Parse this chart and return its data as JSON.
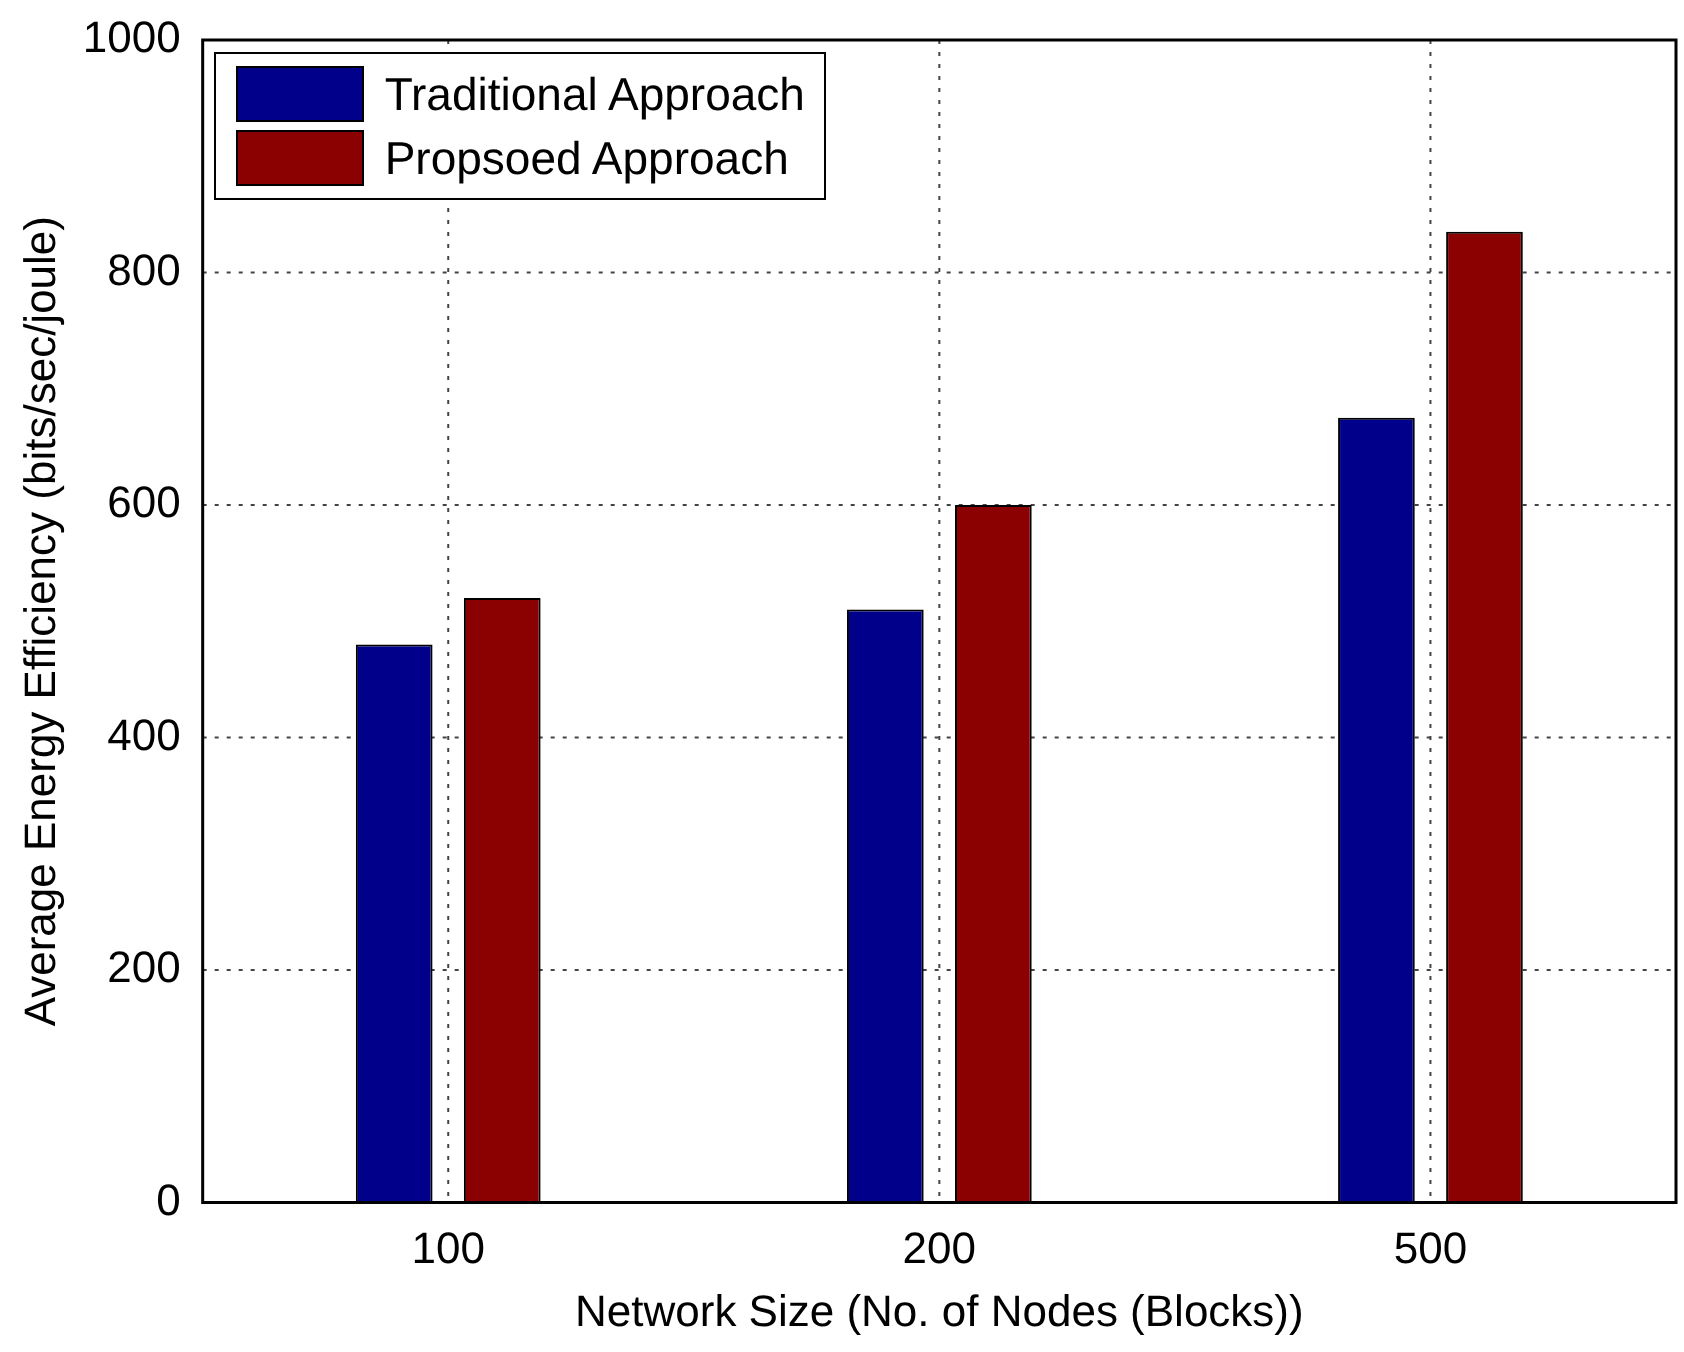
{
  "chart_data": {
    "type": "bar",
    "xlabel": "Network Size (No. of Nodes (Blocks))",
    "ylabel": "Average Energy Efficiency (bits/sec/joule)",
    "categories": [
      "100",
      "200",
      "500"
    ],
    "series": [
      {
        "name": "Traditional Approach",
        "color": "#00008b",
        "values": [
          480,
          510,
          675
        ]
      },
      {
        "name": "Propsoed Approach",
        "color": "#8b0000",
        "values": [
          520,
          600,
          835
        ]
      }
    ],
    "ylim": [
      0,
      1000
    ],
    "yticks": [
      0,
      200,
      400,
      600,
      800,
      1000
    ],
    "grid": true,
    "legend": "top left"
  }
}
